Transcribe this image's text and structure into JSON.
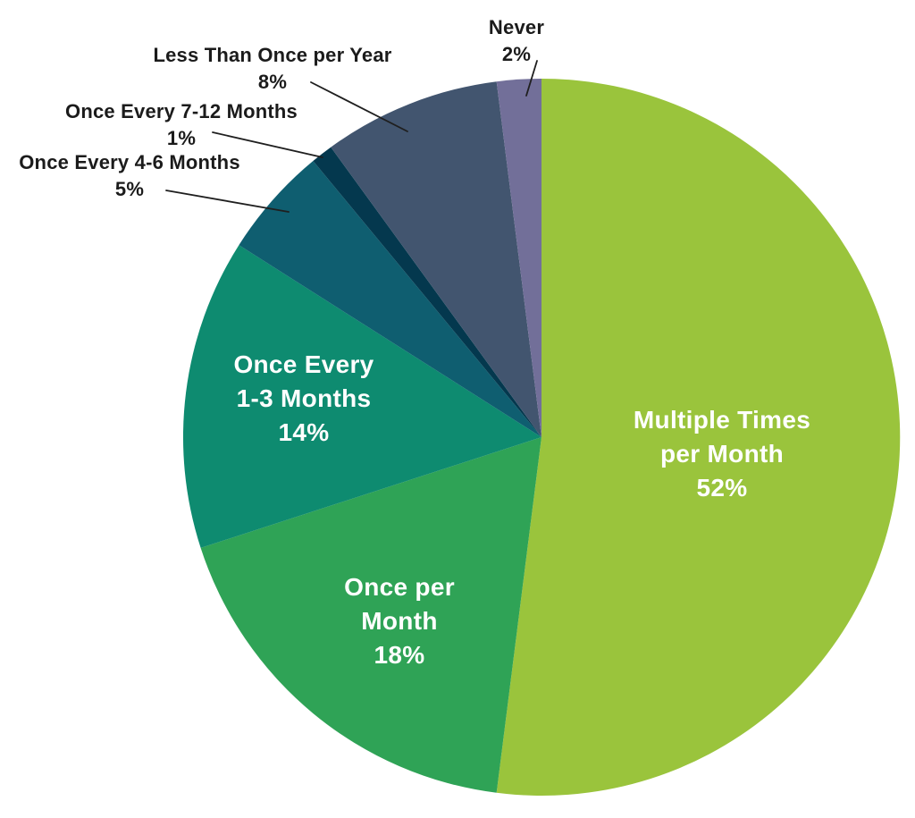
{
  "chart_data": {
    "type": "pie",
    "title": "",
    "background": "#ffffff",
    "direction": "clockwise",
    "start_angle_deg": 0,
    "legend": "none",
    "text_colors": {
      "inside": "#ffffff",
      "outside": "#1b1b1b",
      "leader_line": "#1f1f1f"
    },
    "segments": [
      {
        "label": "Multiple Times per Month",
        "value": 52,
        "pct_label": "52%",
        "color": "#9ac43c",
        "placement": "inside",
        "label_lines": [
          "Multiple Times",
          "per Month"
        ]
      },
      {
        "label": "Once per Month",
        "value": 18,
        "pct_label": "18%",
        "color": "#2fa356",
        "placement": "inside",
        "label_lines": [
          "Once per",
          "Month"
        ]
      },
      {
        "label": "Once Every 1-3 Months",
        "value": 14,
        "pct_label": "14%",
        "color": "#0e8b70",
        "placement": "inside",
        "label_lines": [
          "Once Every",
          "1-3 Months"
        ]
      },
      {
        "label": "Once Every 4-6 Months",
        "value": 5,
        "pct_label": "5%",
        "color": "#0f5e70",
        "placement": "outside",
        "label_lines": [
          "Once Every 4-6 Months"
        ]
      },
      {
        "label": "Once Every 7-12 Months",
        "value": 1,
        "pct_label": "1%",
        "color": "#04384e",
        "placement": "outside",
        "label_lines": [
          "Once Every 7-12 Months"
        ]
      },
      {
        "label": "Less Than Once per Year",
        "value": 8,
        "pct_label": "8%",
        "color": "#42556f",
        "placement": "outside",
        "label_lines": [
          "Less Than Once per Year"
        ]
      },
      {
        "label": "Never",
        "value": 2,
        "pct_label": "2%",
        "color": "#726f99",
        "placement": "outside",
        "label_lines": [
          "Never"
        ]
      }
    ]
  }
}
